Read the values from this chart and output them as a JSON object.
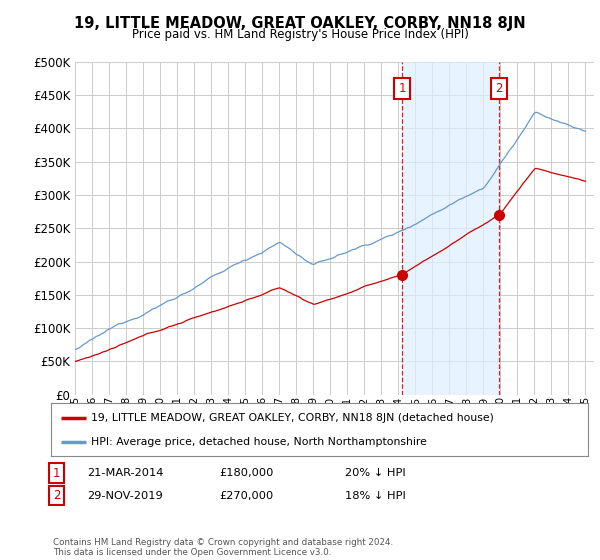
{
  "title": "19, LITTLE MEADOW, GREAT OAKLEY, CORBY, NN18 8JN",
  "subtitle": "Price paid vs. HM Land Registry's House Price Index (HPI)",
  "legend_label_red": "19, LITTLE MEADOW, GREAT OAKLEY, CORBY, NN18 8JN (detached house)",
  "legend_label_blue": "HPI: Average price, detached house, North Northamptonshire",
  "footer": "Contains HM Land Registry data © Crown copyright and database right 2024.\nThis data is licensed under the Open Government Licence v3.0.",
  "sale1_date": "21-MAR-2014",
  "sale1_price": 180000,
  "sale1_note": "20% ↓ HPI",
  "sale1_year": 2014.22,
  "sale2_date": "29-NOV-2019",
  "sale2_price": 270000,
  "sale2_note": "18% ↓ HPI",
  "sale2_year": 2019.91,
  "ylim_min": 0,
  "ylim_max": 500000,
  "xlim_min": 1995,
  "xlim_max": 2025.5,
  "bg_color": "#ffffff",
  "grid_color": "#cccccc",
  "red_color": "#cc0000",
  "blue_color": "#6699cc",
  "shade_color": "#ddeeff"
}
